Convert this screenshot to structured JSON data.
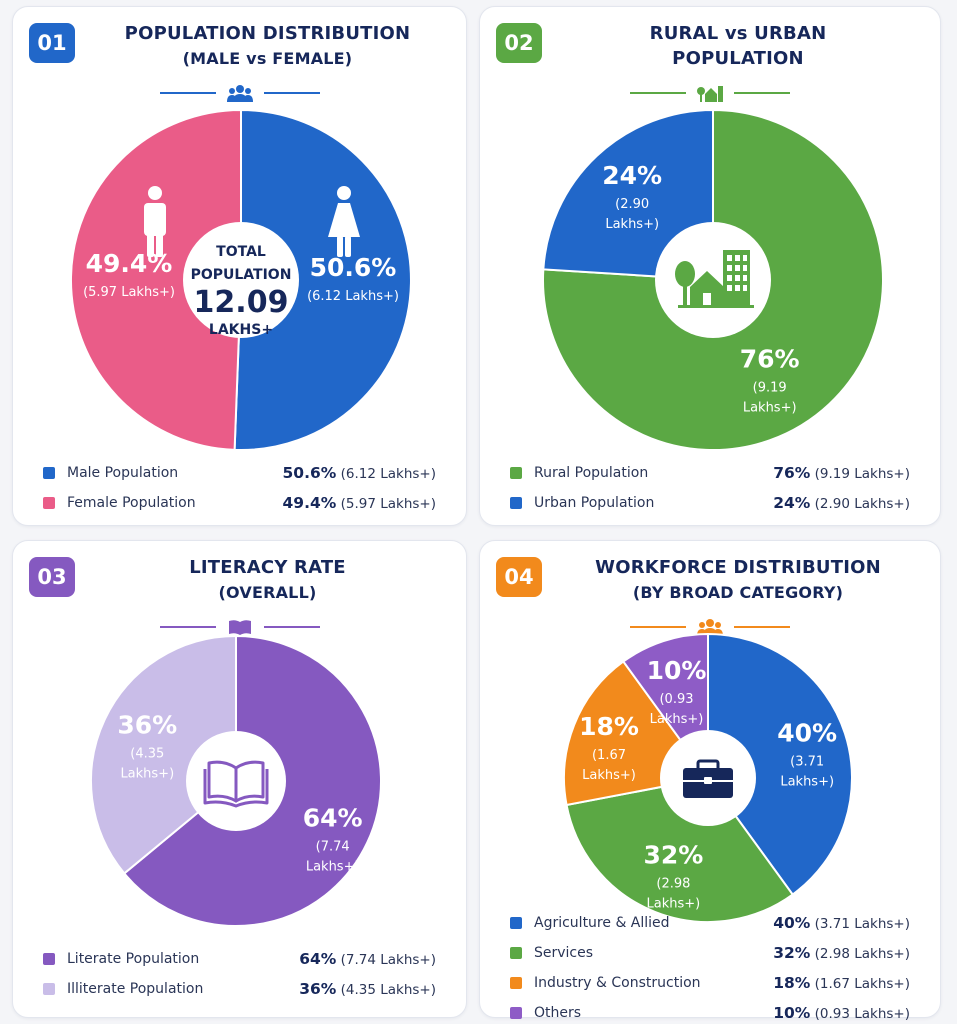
{
  "colors": {
    "male": "#2167c9",
    "female": "#ea5c88",
    "rural": "#5ba844",
    "urban": "#2167c9",
    "literate": "#8559c0",
    "illiterate": "#c9bde8",
    "agriculture": "#2167c9",
    "services": "#5ba844",
    "industry": "#f28a1c",
    "others": "#8e5cc6",
    "navy": "#16275a"
  },
  "panels": [
    {
      "badge": "01",
      "badge_color": "#2167c9",
      "title_line1": "POPULATION DISTRIBUTION",
      "title_line2": "(MALE vs FEMALE)",
      "icon": "people-icon"
    },
    {
      "badge": "02",
      "badge_color": "#5ba844",
      "title_line1": "RURAL vs URBAN",
      "title_line2": "POPULATION",
      "icon": "house-trees-icon"
    },
    {
      "badge": "03",
      "badge_color": "#8559c0",
      "title_line1": "LITERACY RATE",
      "title_line2": "(OVERALL)",
      "icon": "book-icon"
    },
    {
      "badge": "04",
      "badge_color": "#f28a1c",
      "title_line1": "WORKFORCE DISTRIBUTION",
      "title_line2": "(BY BROAD CATEGORY)",
      "icon": "people-icon"
    }
  ],
  "center": {
    "line1": "TOTAL",
    "line2": "POPULATION",
    "value": "12.09",
    "line4": "LAKHS+"
  },
  "chart_data": [
    {
      "type": "pie",
      "title": "POPULATION DISTRIBUTION (MALE vs FEMALE)",
      "slices": [
        {
          "label": "Male Population",
          "percent": 50.6,
          "pct_text": "50.6%",
          "detail": "(6.12 Lakhs+)",
          "color": "#2167c9"
        },
        {
          "label": "Female Population",
          "percent": 49.4,
          "pct_text": "49.4%",
          "detail": "(5.97 Lakhs+)",
          "color": "#ea5c88"
        }
      ]
    },
    {
      "type": "pie",
      "title": "RURAL vs URBAN POPULATION",
      "slices": [
        {
          "label": "Rural Population",
          "percent": 76,
          "pct_text": "76%",
          "detail": "(9.19 Lakhs+)",
          "label_lines": [
            "(9.19",
            "Lakhs+)"
          ],
          "color": "#5ba844"
        },
        {
          "label": "Urban Population",
          "percent": 24,
          "pct_text": "24%",
          "detail": "(2.90 Lakhs+)",
          "label_lines": [
            "(2.90",
            "Lakhs+)"
          ],
          "color": "#2167c9"
        }
      ]
    },
    {
      "type": "pie",
      "title": "LITERACY RATE (OVERALL)",
      "slices": [
        {
          "label": "Literate Population",
          "percent": 64,
          "pct_text": "64%",
          "detail": "(7.74 Lakhs+)",
          "label_lines": [
            "(7.74",
            "Lakhs+)"
          ],
          "color": "#8559c0"
        },
        {
          "label": "Illiterate Population",
          "percent": 36,
          "pct_text": "36%",
          "detail": "(4.35 Lakhs+)",
          "label_lines": [
            "(4.35",
            "Lakhs+)"
          ],
          "color": "#c9bde8"
        }
      ]
    },
    {
      "type": "pie",
      "title": "WORKFORCE DISTRIBUTION (BY BROAD CATEGORY)",
      "slices": [
        {
          "label": "Agriculture & Allied",
          "percent": 40,
          "pct_text": "40%",
          "detail": "(3.71 Lakhs+)",
          "label_lines": [
            "(3.71",
            "Lakhs+)"
          ],
          "color": "#2167c9"
        },
        {
          "label": "Services",
          "percent": 32,
          "pct_text": "32%",
          "detail": "(2.98 Lakhs+)",
          "label_lines": [
            "(2.98",
            "Lakhs+)"
          ],
          "color": "#5ba844"
        },
        {
          "label": "Industry & Construction",
          "percent": 18,
          "pct_text": "18%",
          "detail": "(1.67 Lakhs+)",
          "label_lines": [
            "(1.67",
            "Lakhs+)"
          ],
          "color": "#f28a1c"
        },
        {
          "label": "Others",
          "percent": 10,
          "pct_text": "10%",
          "detail": "(0.93 Lakhs+)",
          "label_lines": [
            "(0.93",
            "Lakhs+)"
          ],
          "color": "#8e5cc6"
        }
      ]
    }
  ]
}
